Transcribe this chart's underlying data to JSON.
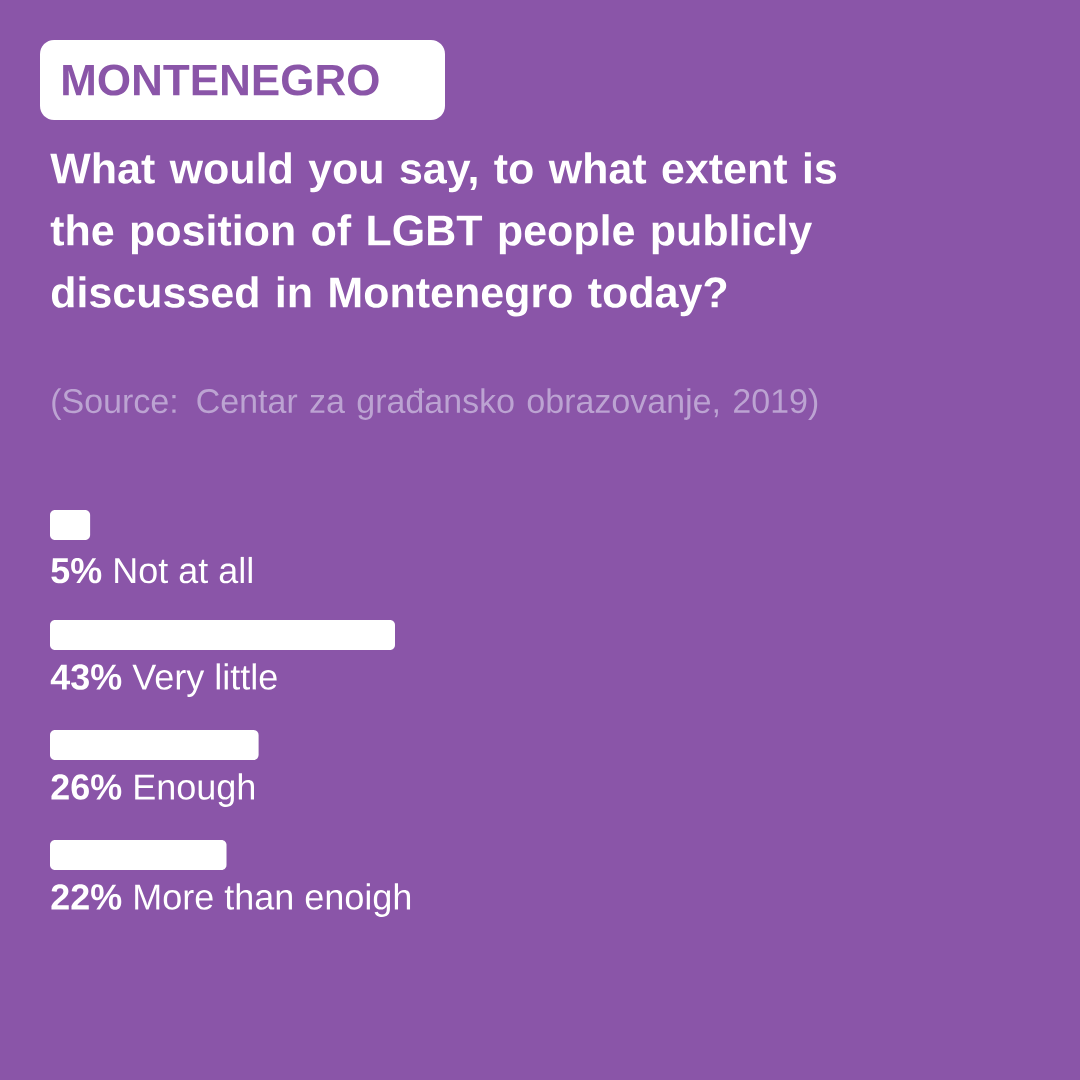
{
  "chart_data": {
    "type": "bar",
    "orientation": "horizontal",
    "title": "What would you say, to what extent is the position of LGBT people publicly discussed in Montenegro today?",
    "annotations": [
      "MONTENEGRO",
      "(Source: Centar za građansko obrazovanje, 2019)"
    ],
    "categories": [
      "Not at all",
      "Very little",
      "Enough",
      "More than enoigh"
    ],
    "values": [
      5,
      43,
      26,
      22
    ],
    "value_labels": [
      "5%",
      "43%",
      "26%",
      "22%"
    ],
    "color": "#ffffff"
  }
}
